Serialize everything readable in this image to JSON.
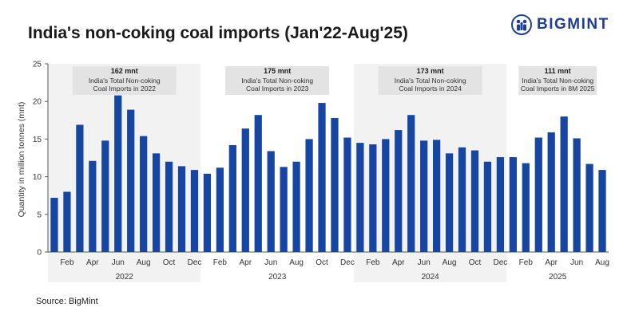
{
  "title": "India's non-coking coal imports (Jan'22-Aug'25)",
  "logo": {
    "text": "BIGMINT",
    "icon": "people-icon",
    "color": "#1f3f95"
  },
  "source": "Source: BigMint",
  "colors": {
    "bar": "#1746a2",
    "shade": "#f2f2f2",
    "annotation_box": "#e3e3e3"
  },
  "chart_data": {
    "type": "bar",
    "title": "India's non-coking coal imports (Jan'22-Aug'25)",
    "ylabel": "Quantity in million tonnes (mnt)",
    "xlabel": "",
    "ylim": [
      0,
      25
    ],
    "yticks": [
      0,
      5,
      10,
      15,
      20,
      25
    ],
    "categories": [
      "Jan-22",
      "Feb-22",
      "Mar-22",
      "Apr-22",
      "May-22",
      "Jun-22",
      "Jul-22",
      "Aug-22",
      "Sep-22",
      "Oct-22",
      "Nov-22",
      "Dec-22",
      "Jan-23",
      "Feb-23",
      "Mar-23",
      "Apr-23",
      "May-23",
      "Jun-23",
      "Jul-23",
      "Aug-23",
      "Sep-23",
      "Oct-23",
      "Nov-23",
      "Dec-23",
      "Jan-24",
      "Feb-24",
      "Mar-24",
      "Apr-24",
      "May-24",
      "Jun-24",
      "Jul-24",
      "Aug-24",
      "Sep-24",
      "Oct-24",
      "Nov-24",
      "Dec-24",
      "Jan-25",
      "Feb-25",
      "Mar-25",
      "Apr-25",
      "May-25",
      "Jun-25",
      "Jul-25",
      "Aug-25"
    ],
    "values": [
      7.2,
      8.0,
      16.9,
      12.1,
      14.8,
      20.8,
      18.9,
      15.4,
      13.1,
      12.0,
      11.4,
      10.9,
      10.4,
      11.2,
      14.2,
      16.4,
      18.2,
      13.4,
      11.3,
      12.0,
      15.0,
      19.8,
      17.8,
      15.2,
      14.5,
      14.3,
      15.0,
      16.2,
      18.2,
      14.8,
      14.9,
      13.1,
      13.9,
      13.5,
      12.0,
      12.6,
      12.6,
      11.8,
      15.2,
      15.9,
      18.0,
      15.1,
      11.7,
      10.9
    ],
    "month_tick_labels": [
      "Feb",
      "Apr",
      "Jun",
      "Aug",
      "Oct",
      "Dec"
    ],
    "month_tick_labels_2025": [
      "Feb",
      "Apr",
      "Jun",
      "Aug"
    ],
    "years": [
      {
        "year": "2022",
        "total": "162 mnt",
        "label_line1": "India's Total Non-coking",
        "label_line2": "Coal Imports in 2022",
        "shaded": true
      },
      {
        "year": "2023",
        "total": "175 mnt",
        "label_line1": "India's Total Non-coking",
        "label_line2": "Coal Imports in 2023",
        "shaded": false
      },
      {
        "year": "2024",
        "total": "173 mnt",
        "label_line1": "India's Total Non-coking",
        "label_line2": "Coal Imports in 2024",
        "shaded": true
      },
      {
        "year": "2025",
        "total": "111 mnt",
        "label_line1": "India's Total Non-coking",
        "label_line2": "Coal Imports in 8M 2025",
        "shaded": false
      }
    ]
  }
}
